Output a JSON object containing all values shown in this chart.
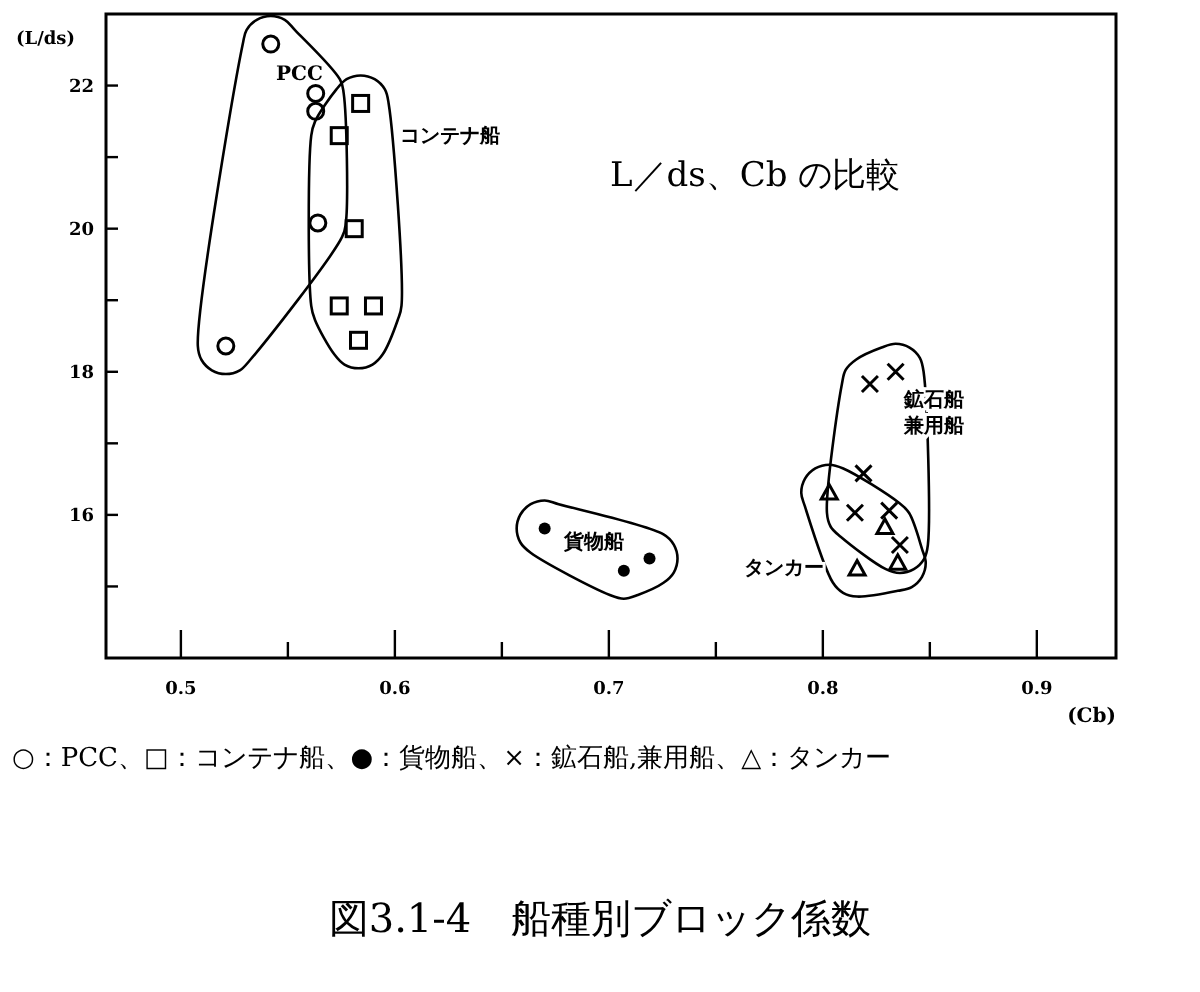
{
  "chart_data": {
    "type": "scatter",
    "title": "L／ds、Cb の比較",
    "xlabel": "(Cb)",
    "ylabel": "(L/ds)",
    "xlim": [
      0.465,
      0.937
    ],
    "ylim": [
      14,
      23
    ],
    "xticks": [
      0.5,
      {
        "value": 0.55,
        "label": null
      },
      0.6,
      {
        "value": 0.65,
        "label": null
      },
      0.7,
      {
        "value": 0.75,
        "label": null
      },
      0.8,
      {
        "value": 0.85,
        "label": null
      },
      0.9
    ],
    "yticks": [
      {
        "value": 15,
        "label": null
      },
      16,
      {
        "value": 17,
        "label": null
      },
      18,
      {
        "value": 19,
        "label": null
      },
      20,
      {
        "value": 21,
        "label": null
      },
      22
    ],
    "legend": false,
    "series": [
      {
        "marker": "circle",
        "color": "#000000",
        "x": [
          0.542,
          0.563,
          0.563,
          0.564,
          0.521
        ],
        "values": [
          22.58,
          21.89,
          21.64,
          20.08,
          18.36
        ]
      },
      {
        "marker": "square",
        "color": "#000000",
        "x": [
          0.584,
          0.574,
          0.581,
          0.574,
          0.59,
          0.583
        ],
        "values": [
          21.75,
          21.3,
          20.0,
          18.92,
          18.92,
          18.44
        ]
      },
      {
        "color": "#000000",
        "x": [
          0.67,
          0.707,
          0.719
        ],
        "values": [
          15.81,
          15.22,
          15.39
        ]
      },
      {
        "marker": "cross",
        "color": "#000000",
        "x": [
          0.822,
          0.834,
          0.819,
          0.815,
          0.831,
          0.836
        ],
        "values": [
          17.83,
          18.0,
          16.58,
          16.03,
          16.06,
          15.58
        ]
      },
      {
        "marker": "triangle",
        "color": "#000000",
        "x": [
          0.803,
          0.829,
          0.816,
          0.835
        ],
        "values": [
          16.31,
          15.83,
          15.25,
          15.33
        ]
      }
    ],
    "annotations": [
      "PCC",
      "コンテナ船",
      "貨物船",
      "鉱石船",
      "兼用船",
      "タンカー",
      "○：PCC、□：コンテナ船、●：貨物船、×：鉱石船,兼用船、△：タンカー",
      "図3.1-4　船種別ブロック係数"
    ]
  }
}
